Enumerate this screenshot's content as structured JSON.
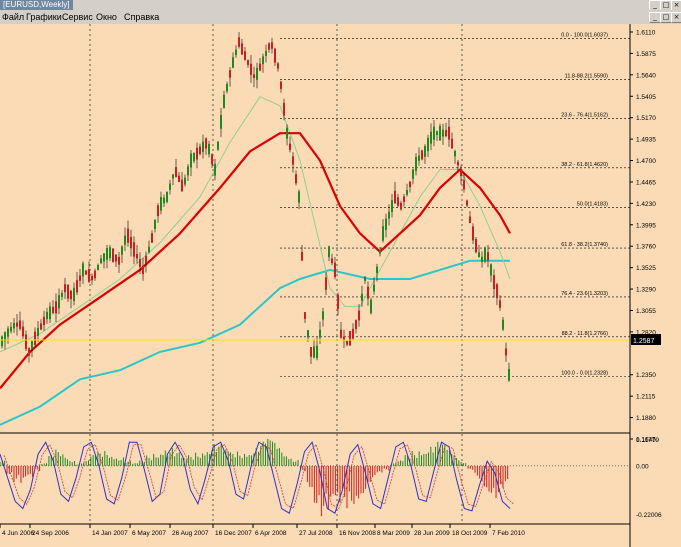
{
  "window": {
    "title": "[EURUSD,Weekly]"
  },
  "menu": {
    "items": [
      "Файл",
      "Графики",
      "Сервис",
      "Окно",
      "Справка"
    ]
  },
  "window_controls": {
    "minimize": "_",
    "maximize": "□",
    "close": "×"
  },
  "colors": {
    "background": "#fbdbb6",
    "candle_up": "#1e8a1e",
    "candle_down": "#cc1e1e",
    "ma_slow": "#dc0000",
    "ma_long": "#28c8c8",
    "ma_fast": "#8fd08f",
    "price_line": "#ffe400",
    "stoch_main": "#3030c8",
    "stoch_signal": "#c84040"
  },
  "chart_data": [
    {
      "type": "candlestick",
      "title": "[EURUSD,Weekly]",
      "y_ticks": [
        "1.6110",
        "1.5875",
        "1.5640",
        "1.5405",
        "1.5170",
        "1.4935",
        "1.4700",
        "1.4465",
        "1.4230",
        "1.3995",
        "1.3760",
        "1.3525",
        "1.3290",
        "1.3055",
        "1.2820",
        "1.2587",
        "1.2350",
        "1.2115",
        "1.1880",
        "1.1645"
      ],
      "current_price": "1.2587",
      "x_ticks": [
        "4 Jun 2006",
        "24 Sep 2006",
        "14 Jan 2007",
        "6 May 2007",
        "26 Aug 2007",
        "16 Dec 2007",
        "6 Apr 2008",
        "27 Jul 2008",
        "16 Nov 2008",
        "8 Mar 2009",
        "28 Jun 2009",
        "18 Oct 2009",
        "7 Feb 2010"
      ],
      "fibonacci": [
        {
          "label": "0.0 - 100.0(1.6037)",
          "value": 1.6037
        },
        {
          "label": "11.8-88.2(1.5590)",
          "value": 1.559
        },
        {
          "label": "23.6 - 76.4(1.5162)",
          "value": 1.5162
        },
        {
          "label": "38.2 - 61.8(1.4620)",
          "value": 1.462
        },
        {
          "label": "50.0(1.4183)",
          "value": 1.4183
        },
        {
          "label": "61.8 - 38.2(1.3740)",
          "value": 1.374
        },
        {
          "label": "76.4 - 23.6(1.3203)",
          "value": 1.3203
        },
        {
          "label": "88.2 - 11.8(1.2766)",
          "value": 1.2766
        },
        {
          "label": "100.0 - 0.0(1.2328)",
          "value": 1.2328
        }
      ],
      "price_path": [
        [
          0,
          1.27
        ],
        [
          6,
          1.28
        ],
        [
          14,
          1.29
        ],
        [
          20,
          1.29
        ],
        [
          28,
          1.26
        ],
        [
          36,
          1.28
        ],
        [
          46,
          1.3
        ],
        [
          56,
          1.31
        ],
        [
          64,
          1.33
        ],
        [
          72,
          1.32
        ],
        [
          82,
          1.35
        ],
        [
          92,
          1.34
        ],
        [
          100,
          1.36
        ],
        [
          108,
          1.37
        ],
        [
          118,
          1.36
        ],
        [
          126,
          1.39
        ],
        [
          134,
          1.37
        ],
        [
          142,
          1.35
        ],
        [
          150,
          1.38
        ],
        [
          158,
          1.42
        ],
        [
          166,
          1.43
        ],
        [
          174,
          1.46
        ],
        [
          182,
          1.44
        ],
        [
          190,
          1.47
        ],
        [
          198,
          1.48
        ],
        [
          206,
          1.49
        ],
        [
          214,
          1.46
        ],
        [
          222,
          1.53
        ],
        [
          230,
          1.57
        ],
        [
          238,
          1.6
        ],
        [
          246,
          1.58
        ],
        [
          254,
          1.56
        ],
        [
          262,
          1.58
        ],
        [
          270,
          1.6
        ],
        [
          278,
          1.57
        ],
        [
          286,
          1.5
        ],
        [
          292,
          1.47
        ],
        [
          298,
          1.43
        ],
        [
          304,
          1.3
        ],
        [
          310,
          1.26
        ],
        [
          316,
          1.26
        ],
        [
          322,
          1.3
        ],
        [
          328,
          1.37
        ],
        [
          334,
          1.35
        ],
        [
          340,
          1.28
        ],
        [
          346,
          1.27
        ],
        [
          352,
          1.28
        ],
        [
          358,
          1.3
        ],
        [
          364,
          1.34
        ],
        [
          370,
          1.31
        ],
        [
          376,
          1.35
        ],
        [
          382,
          1.39
        ],
        [
          388,
          1.41
        ],
        [
          394,
          1.43
        ],
        [
          400,
          1.42
        ],
        [
          408,
          1.44
        ],
        [
          416,
          1.47
        ],
        [
          424,
          1.48
        ],
        [
          432,
          1.5
        ],
        [
          440,
          1.5
        ],
        [
          448,
          1.5
        ],
        [
          456,
          1.47
        ],
        [
          462,
          1.45
        ],
        [
          468,
          1.41
        ],
        [
          474,
          1.38
        ],
        [
          480,
          1.36
        ],
        [
          486,
          1.37
        ],
        [
          492,
          1.34
        ],
        [
          498,
          1.32
        ],
        [
          502,
          1.29
        ],
        [
          506,
          1.25
        ],
        [
          510,
          1.22
        ]
      ],
      "ma_slow_path": [
        [
          0,
          1.22
        ],
        [
          30,
          1.26
        ],
        [
          60,
          1.29
        ],
        [
          100,
          1.32
        ],
        [
          140,
          1.35
        ],
        [
          180,
          1.39
        ],
        [
          220,
          1.44
        ],
        [
          250,
          1.48
        ],
        [
          280,
          1.5
        ],
        [
          300,
          1.5
        ],
        [
          320,
          1.47
        ],
        [
          340,
          1.42
        ],
        [
          360,
          1.39
        ],
        [
          380,
          1.37
        ],
        [
          400,
          1.39
        ],
        [
          420,
          1.41
        ],
        [
          440,
          1.44
        ],
        [
          460,
          1.46
        ],
        [
          480,
          1.44
        ],
        [
          500,
          1.41
        ],
        [
          510,
          1.39
        ]
      ],
      "ma_long_path": [
        [
          0,
          1.18
        ],
        [
          40,
          1.2
        ],
        [
          80,
          1.23
        ],
        [
          120,
          1.24
        ],
        [
          160,
          1.26
        ],
        [
          200,
          1.27
        ],
        [
          240,
          1.29
        ],
        [
          280,
          1.33
        ],
        [
          300,
          1.34
        ],
        [
          330,
          1.35
        ],
        [
          370,
          1.34
        ],
        [
          410,
          1.34
        ],
        [
          440,
          1.35
        ],
        [
          470,
          1.36
        ],
        [
          500,
          1.36
        ],
        [
          510,
          1.36
        ]
      ],
      "ma_fast_path": [
        [
          0,
          1.26
        ],
        [
          40,
          1.28
        ],
        [
          80,
          1.31
        ],
        [
          120,
          1.34
        ],
        [
          160,
          1.38
        ],
        [
          200,
          1.43
        ],
        [
          230,
          1.49
        ],
        [
          260,
          1.54
        ],
        [
          280,
          1.53
        ],
        [
          300,
          1.47
        ],
        [
          315,
          1.4
        ],
        [
          330,
          1.33
        ],
        [
          345,
          1.31
        ],
        [
          360,
          1.31
        ],
        [
          380,
          1.35
        ],
        [
          400,
          1.39
        ],
        [
          420,
          1.43
        ],
        [
          440,
          1.46
        ],
        [
          460,
          1.46
        ],
        [
          480,
          1.42
        ],
        [
          500,
          1.37
        ],
        [
          510,
          1.34
        ]
      ]
    },
    {
      "type": "oscillator",
      "y_ticks": [
        "0.11779",
        "0.00",
        "-0.22006"
      ],
      "histogram": [
        0.02,
        -0.03,
        -0.06,
        -0.08,
        -0.06,
        -0.02,
        0.01,
        0.04,
        0.06,
        0.05,
        0.03,
        0.01,
        0.02,
        0.04,
        0.05,
        0.06,
        0.05,
        0.04,
        0.02,
        0.01,
        0.02,
        0.04,
        0.06,
        0.08,
        0.07,
        0.05,
        0.03,
        0.04,
        0.06,
        0.08,
        0.09,
        0.08,
        0.06,
        0.05,
        0.06,
        0.07,
        0.08,
        0.09,
        0.1,
        0.09,
        0.07,
        0.05,
        0.03,
        -0.02,
        -0.08,
        -0.14,
        -0.19,
        -0.21,
        -0.2,
        -0.17,
        -0.14,
        -0.12,
        -0.1,
        -0.07,
        -0.04,
        -0.02,
        0.01,
        0.02,
        0.04,
        0.06,
        0.08,
        0.09,
        0.09,
        0.08,
        0.06,
        0.04,
        0.02,
        -0.02,
        -0.05,
        -0.08,
        -0.1,
        -0.12,
        -0.1
      ],
      "main_line": [
        0.05,
        -0.05,
        -0.15,
        -0.18,
        -0.1,
        0.05,
        0.1,
        0.02,
        -0.12,
        -0.15,
        -0.05,
        0.08,
        0.1,
        0.0,
        -0.14,
        -0.16,
        -0.05,
        0.1,
        0.1,
        -0.02,
        -0.15,
        -0.12,
        0.05,
        0.1,
        0.04,
        -0.1,
        -0.16,
        -0.05,
        0.08,
        0.1,
        0.02,
        -0.12,
        -0.14,
        0.0,
        0.1,
        0.08,
        -0.05,
        -0.18,
        -0.2,
        -0.08,
        0.06,
        0.1,
        -0.02,
        -0.18,
        -0.2,
        -0.1,
        0.05,
        0.09,
        -0.03,
        -0.16,
        -0.18,
        -0.05,
        0.08,
        0.1,
        0.0,
        -0.14,
        -0.15,
        -0.02,
        0.1,
        0.08,
        -0.06,
        -0.18,
        -0.19,
        -0.08,
        0.02,
        -0.03,
        -0.15,
        -0.18
      ]
    }
  ]
}
